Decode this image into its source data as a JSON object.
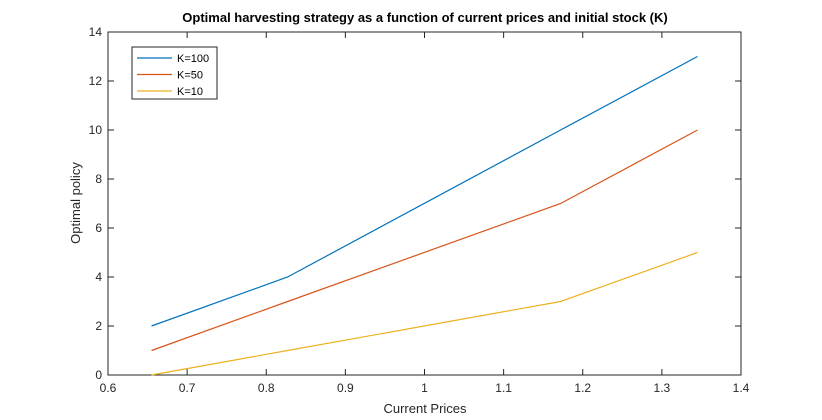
{
  "chart_data": {
    "type": "line",
    "title": "Optimal harvesting strategy as a function of current prices and initial stock (K)",
    "xlabel": "Current Prices",
    "ylabel": "Optimal policy",
    "xlim": [
      0.6,
      1.4
    ],
    "ylim": [
      0,
      14
    ],
    "xticks": [
      "0.6",
      "0.7",
      "0.8",
      "0.9",
      "1",
      "1.1",
      "1.2",
      "1.3",
      "1.4"
    ],
    "yticks": [
      "0",
      "2",
      "4",
      "6",
      "8",
      "10",
      "12",
      "14"
    ],
    "grid": false,
    "legend_position": "top-left",
    "series": [
      {
        "name": "K=100",
        "color": "#0072BD",
        "x": [
          0.655,
          0.827,
          1.172,
          1.345
        ],
        "y": [
          2,
          4,
          10,
          13
        ]
      },
      {
        "name": "K=50",
        "color": "#D95319",
        "x": [
          0.655,
          0.827,
          1.172,
          1.345
        ],
        "y": [
          1,
          3,
          7,
          10
        ]
      },
      {
        "name": "K=10",
        "color": "#EDB120",
        "x": [
          0.655,
          0.827,
          1.172,
          1.345
        ],
        "y": [
          0,
          1,
          3,
          5
        ]
      }
    ]
  }
}
